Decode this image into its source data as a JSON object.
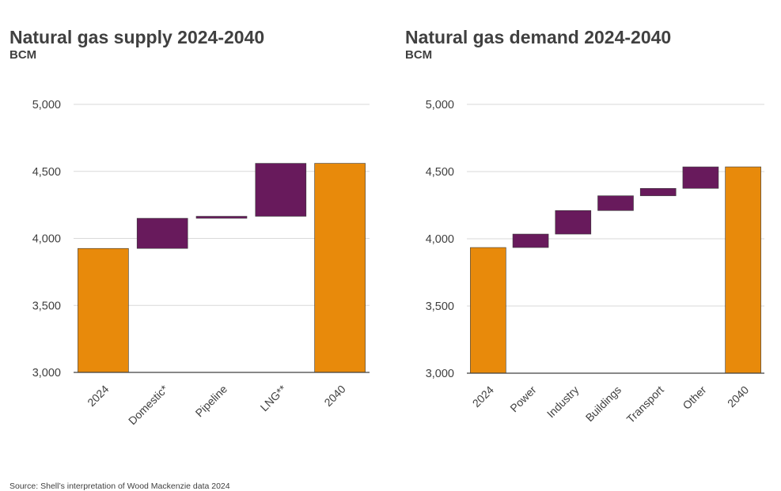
{
  "colors": {
    "endpoint_bar": "#E88A0B",
    "change_bar": "#681A5C",
    "gridline": "#D9D9D9",
    "axis": "#404040",
    "text": "#404040"
  },
  "source_note": "Source: Shell’s interpretation of Wood Mackenzie data 2024",
  "chart_data": [
    {
      "type": "bar",
      "subtype": "waterfall",
      "title": "Natural gas supply 2024-2040",
      "unit": "BCM",
      "ylim": [
        3000,
        5000
      ],
      "yticks": [
        3000,
        3500,
        4000,
        4500,
        5000
      ],
      "ytick_labels": [
        "3,000",
        "3,500",
        "4,000",
        "4,500",
        "5,000"
      ],
      "grid": true,
      "categories": [
        "2024",
        "Domestic*",
        "Pipeline",
        "LNG**",
        "2040"
      ],
      "bars": [
        {
          "label": "2024",
          "kind": "total",
          "value": 3925
        },
        {
          "label": "Domestic*",
          "kind": "change",
          "start": 3925,
          "end": 4150
        },
        {
          "label": "Pipeline",
          "kind": "change",
          "start": 4150,
          "end": 4165
        },
        {
          "label": "LNG**",
          "kind": "change",
          "start": 4165,
          "end": 4560
        },
        {
          "label": "2040",
          "kind": "total",
          "value": 4560
        }
      ]
    },
    {
      "type": "bar",
      "subtype": "waterfall",
      "title": "Natural gas demand 2024-2040",
      "unit": "BCM",
      "ylim": [
        3000,
        5000
      ],
      "yticks": [
        3000,
        3500,
        4000,
        4500,
        5000
      ],
      "ytick_labels": [
        "3,000",
        "3,500",
        "4,000",
        "4,500",
        "5,000"
      ],
      "grid": true,
      "categories": [
        "2024",
        "Power",
        "Industry",
        "Buildings",
        "Transport",
        "Other",
        "2040"
      ],
      "bars": [
        {
          "label": "2024",
          "kind": "total",
          "value": 3935
        },
        {
          "label": "Power",
          "kind": "change",
          "start": 3935,
          "end": 4035
        },
        {
          "label": "Industry",
          "kind": "change",
          "start": 4035,
          "end": 4210
        },
        {
          "label": "Buildings",
          "kind": "change",
          "start": 4210,
          "end": 4320
        },
        {
          "label": "Transport",
          "kind": "change",
          "start": 4320,
          "end": 4375
        },
        {
          "label": "Other",
          "kind": "change",
          "start": 4375,
          "end": 4535
        },
        {
          "label": "2040",
          "kind": "total",
          "value": 4535
        }
      ]
    }
  ]
}
